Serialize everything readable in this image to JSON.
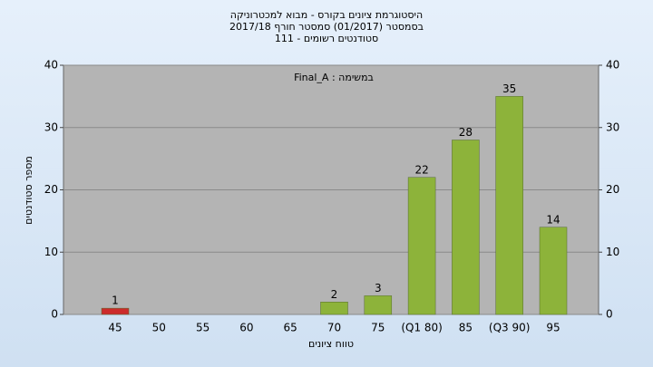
{
  "chart_data": {
    "type": "bar",
    "title": "היסטוגרמת ציונים בקורס - מבוא למכטרוניקה",
    "subtitle": "בסמסטר  (01/2017)  סמסטר חורף 2017/18",
    "subtitle2": "סטודנטים רשומים - 111",
    "annotation": "במשימה : Final_A",
    "y_label": "מספר סטודנטים",
    "x_label": "טווח ציונים",
    "categories": [
      "45",
      "50",
      "55",
      "60",
      "65",
      "70",
      "75",
      "(Q1 80)",
      "85",
      "(Q3 90)",
      "95"
    ],
    "values": [
      1,
      0,
      0,
      0,
      0,
      2,
      3,
      22,
      28,
      35,
      14
    ],
    "colors": [
      "#cc2b2b",
      "#8db33a",
      "#8db33a",
      "#8db33a",
      "#8db33a",
      "#8db33a",
      "#8db33a",
      "#8db33a",
      "#8db33a",
      "#8db33a",
      "#8db33a"
    ],
    "ylim": [
      0,
      40
    ],
    "yticks": [
      0,
      10,
      20,
      30,
      40
    ],
    "y2lim": [
      0,
      40
    ],
    "y2ticks": [
      0,
      10,
      20,
      30,
      40
    ],
    "grid": true
  }
}
